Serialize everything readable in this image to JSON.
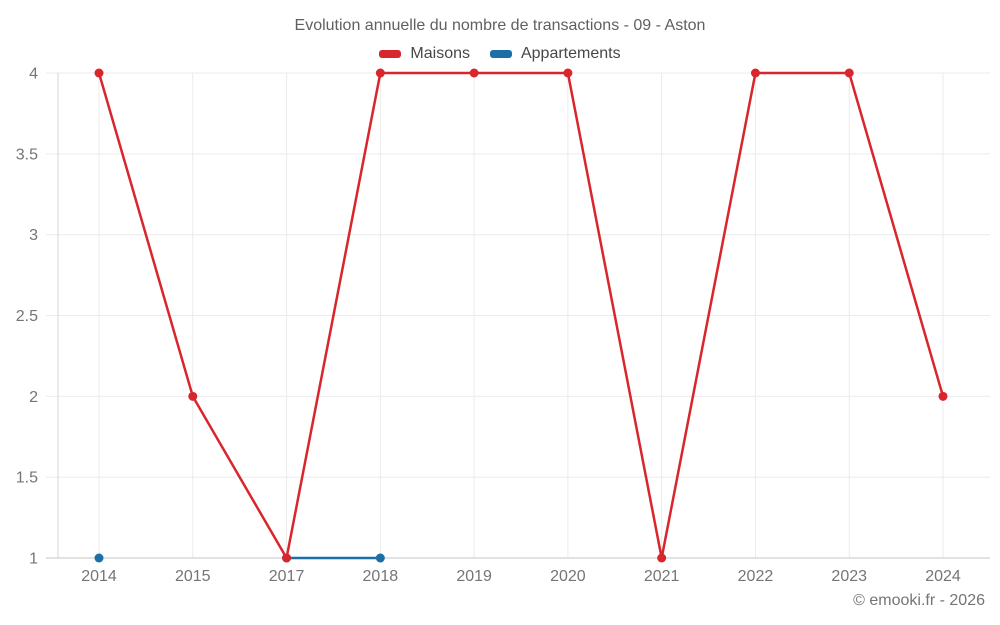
{
  "chart_data": {
    "type": "line",
    "title": "Evolution annuelle du nombre de transactions - 09 - Aston",
    "x_categories": [
      "2014",
      "2015",
      "2017",
      "2018",
      "2019",
      "2020",
      "2021",
      "2022",
      "2023",
      "2024"
    ],
    "y_ticks": [
      "1",
      "1.5",
      "2",
      "2.5",
      "3",
      "3.5",
      "4"
    ],
    "ylim": [
      1,
      4
    ],
    "grid": true,
    "legend_position": "top-center",
    "series": [
      {
        "name": "Maisons",
        "color": "#d8262c",
        "values": [
          4,
          2,
          1,
          4,
          4,
          4,
          1,
          4,
          4,
          2
        ]
      },
      {
        "name": "Appartements",
        "color": "#1c6fa6",
        "values": [
          1,
          null,
          1,
          1,
          null,
          null,
          null,
          null,
          null,
          null
        ]
      }
    ]
  },
  "footer": {
    "copyright": "© emooki.fr - 2026"
  }
}
